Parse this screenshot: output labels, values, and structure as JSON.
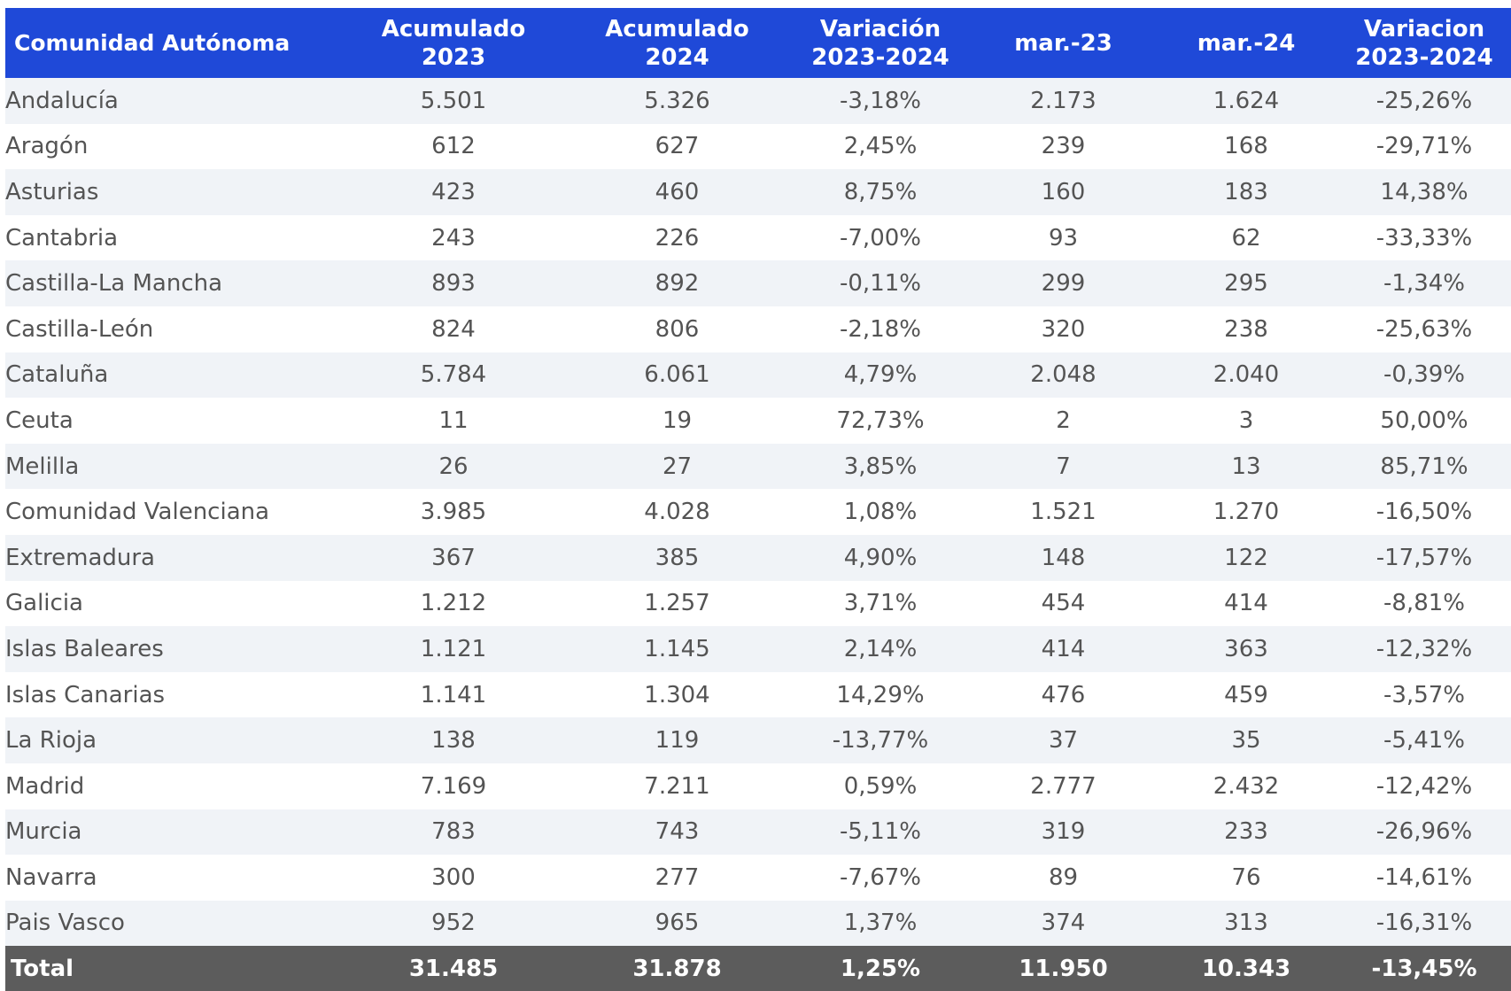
{
  "table": {
    "headers": [
      "Comunidad Autónoma",
      "Acumulado 2023",
      "Acumulado 2024",
      "Variación 2023-2024",
      "mar.-23",
      "mar.-24",
      "Variacion 2023-2024"
    ],
    "rows": [
      [
        "Andalucía",
        "5.501",
        "5.326",
        "-3,18%",
        "2.173",
        "1.624",
        "-25,26%"
      ],
      [
        "Aragón",
        "612",
        "627",
        "2,45%",
        "239",
        "168",
        "-29,71%"
      ],
      [
        "Asturias",
        "423",
        "460",
        "8,75%",
        "160",
        "183",
        "14,38%"
      ],
      [
        "Cantabria",
        "243",
        "226",
        "-7,00%",
        "93",
        "62",
        "-33,33%"
      ],
      [
        "Castilla-La Mancha",
        "893",
        "892",
        "-0,11%",
        "299",
        "295",
        "-1,34%"
      ],
      [
        "Castilla-León",
        "824",
        "806",
        "-2,18%",
        "320",
        "238",
        "-25,63%"
      ],
      [
        "Cataluña",
        "5.784",
        "6.061",
        "4,79%",
        "2.048",
        "2.040",
        "-0,39%"
      ],
      [
        "Ceuta",
        "11",
        "19",
        "72,73%",
        "2",
        "3",
        "50,00%"
      ],
      [
        "Melilla",
        "26",
        "27",
        "3,85%",
        "7",
        "13",
        "85,71%"
      ],
      [
        "Comunidad Valenciana",
        "3.985",
        "4.028",
        "1,08%",
        "1.521",
        "1.270",
        "-16,50%"
      ],
      [
        "Extremadura",
        "367",
        "385",
        "4,90%",
        "148",
        "122",
        "-17,57%"
      ],
      [
        "Galicia",
        "1.212",
        "1.257",
        "3,71%",
        "454",
        "414",
        "-8,81%"
      ],
      [
        "Islas Baleares",
        "1.121",
        "1.145",
        "2,14%",
        "414",
        "363",
        "-12,32%"
      ],
      [
        "Islas Canarias",
        "1.141",
        "1.304",
        "14,29%",
        "476",
        "459",
        "-3,57%"
      ],
      [
        "La Rioja",
        "138",
        "119",
        "-13,77%",
        "37",
        "35",
        "-5,41%"
      ],
      [
        "Madrid",
        "7.169",
        "7.211",
        "0,59%",
        "2.777",
        "2.432",
        "-12,42%"
      ],
      [
        "Murcia",
        "783",
        "743",
        "-5,11%",
        "319",
        "233",
        "-26,96%"
      ],
      [
        "Navarra",
        "300",
        "277",
        "-7,67%",
        "89",
        "76",
        "-14,61%"
      ],
      [
        "Pais Vasco",
        "952",
        "965",
        "1,37%",
        "374",
        "313",
        "-16,31%"
      ]
    ],
    "total": [
      "Total",
      "31.485",
      "31.878",
      "1,25%",
      "11.950",
      "10.343",
      "-13,45%"
    ]
  }
}
